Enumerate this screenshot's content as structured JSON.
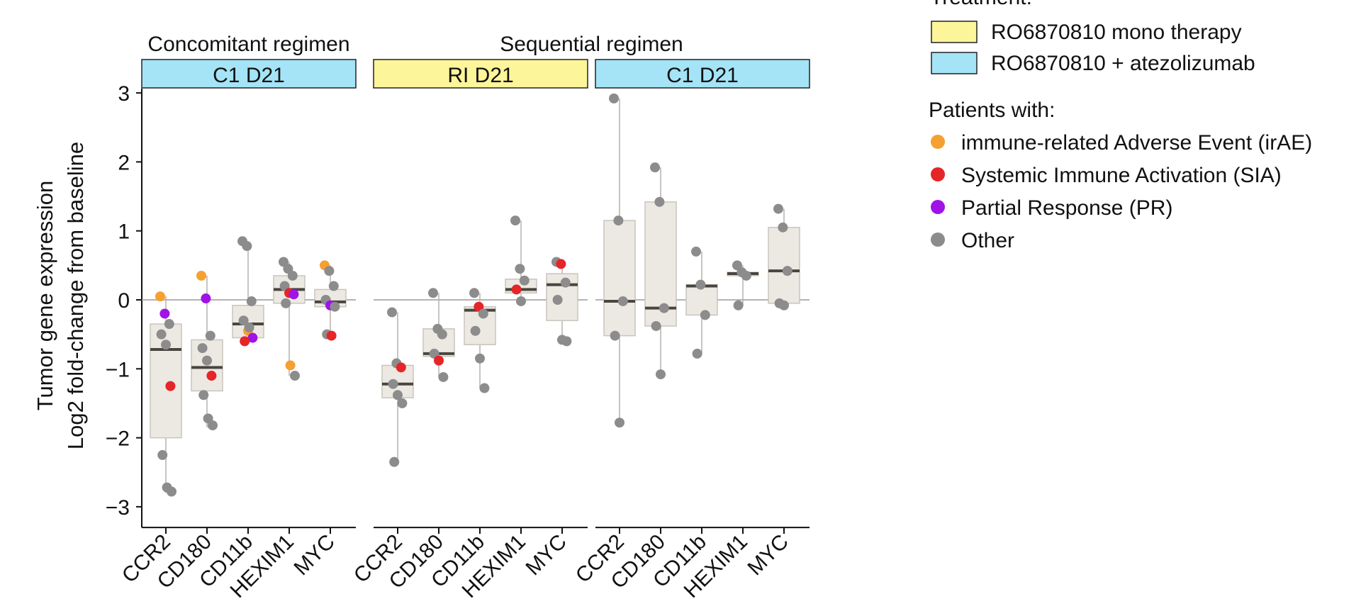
{
  "chart_data": {
    "type": "box",
    "ylabel_line1": "Tumor gene expression",
    "ylabel_line2": "Log2 fold-change from baseline",
    "ylim": [
      -3.3,
      3.0
    ],
    "yticks": [
      -3,
      -2,
      -1,
      0,
      1,
      2,
      3
    ],
    "ytick_labels": [
      "−3",
      "−2",
      "−1",
      "0",
      "1",
      "2",
      "3"
    ],
    "genes": [
      "CCR2",
      "CD180",
      "CD11b",
      "HEXIM1",
      "MYC"
    ],
    "colors": {
      "irAE": "#F5A030",
      "SIA": "#E52528",
      "PR": "#A012E8",
      "Other": "#8C8C8C",
      "mono": "#FCF59A",
      "combo": "#A4E4F6",
      "box_fill": "#ECE9E2",
      "box_stroke": "#C8C5BE",
      "median": "#4A4540"
    },
    "regimens": [
      {
        "key": "concomitant",
        "title": "Concomitant regimen",
        "span": [
          0,
          0
        ]
      },
      {
        "key": "sequential",
        "title": "Sequential regimen",
        "span": [
          1,
          2
        ]
      }
    ],
    "panels": [
      {
        "header": "C1 D21",
        "treatment": "combo",
        "boxes": [
          {
            "gene": "CCR2",
            "q1": -2.0,
            "median": -0.72,
            "q3": -0.35,
            "wlow": -2.8,
            "whigh": 0.05,
            "significant": true,
            "points": [
              [
                0.05,
                "irAE"
              ],
              [
                -0.2,
                "PR"
              ],
              [
                -0.35,
                "Other"
              ],
              [
                -0.5,
                "Other"
              ],
              [
                -0.65,
                "Other"
              ],
              [
                -1.25,
                "SIA"
              ],
              [
                -2.25,
                "Other"
              ],
              [
                -2.72,
                "Other"
              ],
              [
                -2.78,
                "Other"
              ]
            ]
          },
          {
            "gene": "CD180",
            "q1": -1.32,
            "median": -0.98,
            "q3": -0.58,
            "wlow": -1.85,
            "whigh": 0.35,
            "significant": true,
            "points": [
              [
                0.35,
                "irAE"
              ],
              [
                0.02,
                "PR"
              ],
              [
                -0.52,
                "Other"
              ],
              [
                -0.7,
                "Other"
              ],
              [
                -0.88,
                "Other"
              ],
              [
                -1.1,
                "SIA"
              ],
              [
                -1.38,
                "Other"
              ],
              [
                -1.72,
                "Other"
              ],
              [
                -1.82,
                "Other"
              ]
            ]
          },
          {
            "gene": "CD11b",
            "q1": -0.55,
            "median": -0.35,
            "q3": -0.08,
            "wlow": -0.62,
            "whigh": 0.85,
            "significant": false,
            "points": [
              [
                0.85,
                "Other"
              ],
              [
                0.78,
                "Other"
              ],
              [
                -0.02,
                "Other"
              ],
              [
                -0.3,
                "Other"
              ],
              [
                -0.45,
                "irAE"
              ],
              [
                -0.55,
                "PR"
              ],
              [
                -0.6,
                "SIA"
              ],
              [
                -0.4,
                "Other"
              ]
            ]
          },
          {
            "gene": "HEXIM1",
            "q1": -0.05,
            "median": 0.15,
            "q3": 0.35,
            "wlow": -1.1,
            "whigh": 0.55,
            "significant": false,
            "points": [
              [
                0.55,
                "Other"
              ],
              [
                0.45,
                "Other"
              ],
              [
                0.35,
                "Other"
              ],
              [
                0.2,
                "Other"
              ],
              [
                0.1,
                "SIA"
              ],
              [
                0.08,
                "PR"
              ],
              [
                -0.05,
                "Other"
              ],
              [
                -0.95,
                "irAE"
              ],
              [
                -1.1,
                "Other"
              ]
            ]
          },
          {
            "gene": "MYC",
            "q1": -0.1,
            "median": -0.03,
            "q3": 0.15,
            "wlow": -0.52,
            "whigh": 0.5,
            "significant": false,
            "points": [
              [
                0.5,
                "irAE"
              ],
              [
                0.42,
                "Other"
              ],
              [
                0.2,
                "Other"
              ],
              [
                0.0,
                "Other"
              ],
              [
                -0.08,
                "PR"
              ],
              [
                -0.1,
                "Other"
              ],
              [
                -0.5,
                "Other"
              ],
              [
                -0.52,
                "SIA"
              ]
            ]
          }
        ]
      },
      {
        "header": "RI D21",
        "treatment": "mono",
        "boxes": [
          {
            "gene": "CCR2",
            "q1": -1.42,
            "median": -1.22,
            "q3": -0.95,
            "wlow": -2.35,
            "whigh": -0.18,
            "significant": false,
            "points": [
              [
                -0.18,
                "Other"
              ],
              [
                -0.92,
                "Other"
              ],
              [
                -0.98,
                "SIA"
              ],
              [
                -1.22,
                "Other"
              ],
              [
                -1.38,
                "Other"
              ],
              [
                -1.5,
                "Other"
              ],
              [
                -2.35,
                "Other"
              ]
            ]
          },
          {
            "gene": "CD180",
            "q1": -0.82,
            "median": -0.78,
            "q3": -0.42,
            "wlow": -1.12,
            "whigh": 0.1,
            "significant": false,
            "points": [
              [
                0.1,
                "Other"
              ],
              [
                -0.42,
                "Other"
              ],
              [
                -0.5,
                "Other"
              ],
              [
                -0.78,
                "Other"
              ],
              [
                -0.88,
                "SIA"
              ],
              [
                -1.12,
                "Other"
              ]
            ]
          },
          {
            "gene": "CD11b",
            "q1": -0.65,
            "median": -0.15,
            "q3": -0.1,
            "wlow": -1.28,
            "whigh": 0.1,
            "significant": false,
            "points": [
              [
                0.1,
                "Other"
              ],
              [
                -0.1,
                "SIA"
              ],
              [
                -0.2,
                "Other"
              ],
              [
                -0.45,
                "Other"
              ],
              [
                -0.85,
                "Other"
              ],
              [
                -1.28,
                "Other"
              ]
            ]
          },
          {
            "gene": "HEXIM1",
            "q1": 0.1,
            "median": 0.15,
            "q3": 0.3,
            "wlow": -0.02,
            "whigh": 1.15,
            "significant": false,
            "points": [
              [
                1.15,
                "Other"
              ],
              [
                0.45,
                "Other"
              ],
              [
                0.28,
                "Other"
              ],
              [
                0.15,
                "SIA"
              ],
              [
                -0.02,
                "Other"
              ]
            ]
          },
          {
            "gene": "MYC",
            "q1": -0.3,
            "median": 0.22,
            "q3": 0.38,
            "wlow": -0.6,
            "whigh": 0.55,
            "significant": false,
            "points": [
              [
                0.55,
                "Other"
              ],
              [
                0.52,
                "SIA"
              ],
              [
                0.25,
                "Other"
              ],
              [
                0.0,
                "Other"
              ],
              [
                -0.58,
                "Other"
              ],
              [
                -0.6,
                "Other"
              ]
            ]
          }
        ]
      },
      {
        "header": "C1 D21",
        "treatment": "combo",
        "boxes": [
          {
            "gene": "CCR2",
            "q1": -0.52,
            "median": -0.02,
            "q3": 1.15,
            "wlow": -1.78,
            "whigh": 2.92,
            "significant": false,
            "points": [
              [
                2.92,
                "Other"
              ],
              [
                1.15,
                "Other"
              ],
              [
                -0.02,
                "Other"
              ],
              [
                -0.52,
                "Other"
              ],
              [
                -1.78,
                "Other"
              ]
            ]
          },
          {
            "gene": "CD180",
            "q1": -0.38,
            "median": -0.12,
            "q3": 1.42,
            "wlow": -1.08,
            "whigh": 1.92,
            "significant": false,
            "points": [
              [
                1.92,
                "Other"
              ],
              [
                1.42,
                "Other"
              ],
              [
                -0.12,
                "Other"
              ],
              [
                -0.38,
                "Other"
              ],
              [
                -1.08,
                "Other"
              ]
            ]
          },
          {
            "gene": "CD11b",
            "q1": -0.22,
            "median": 0.2,
            "q3": 0.22,
            "wlow": -0.78,
            "whigh": 0.7,
            "significant": false,
            "points": [
              [
                0.7,
                "Other"
              ],
              [
                0.22,
                "Other"
              ],
              [
                -0.22,
                "Other"
              ],
              [
                -0.78,
                "Other"
              ]
            ]
          },
          {
            "gene": "HEXIM1",
            "q1": 0.35,
            "median": 0.38,
            "q3": 0.4,
            "wlow": -0.08,
            "whigh": 0.5,
            "significant": false,
            "points": [
              [
                0.5,
                "Other"
              ],
              [
                0.4,
                "Other"
              ],
              [
                0.35,
                "Other"
              ],
              [
                -0.08,
                "Other"
              ]
            ]
          },
          {
            "gene": "MYC",
            "q1": -0.05,
            "median": 0.42,
            "q3": 1.05,
            "wlow": -0.08,
            "whigh": 1.32,
            "significant": false,
            "points": [
              [
                1.32,
                "Other"
              ],
              [
                1.05,
                "Other"
              ],
              [
                0.42,
                "Other"
              ],
              [
                -0.05,
                "Other"
              ],
              [
                -0.08,
                "Other"
              ]
            ]
          }
        ]
      }
    ],
    "legend": {
      "treatment_title": "Treatment:",
      "treatment_items": [
        {
          "key": "mono",
          "label": "RO6870810 mono therapy"
        },
        {
          "key": "combo",
          "label": "RO6870810 + atezolizumab"
        }
      ],
      "patients_title": "Patients with:",
      "patient_items": [
        {
          "key": "irAE",
          "label": "immune-related Adverse Event (irAE)"
        },
        {
          "key": "SIA",
          "label": "Systemic Immune Activation (SIA)"
        },
        {
          "key": "PR",
          "label": "Partial Response (PR)"
        },
        {
          "key": "Other",
          "label": "Other"
        }
      ]
    }
  }
}
